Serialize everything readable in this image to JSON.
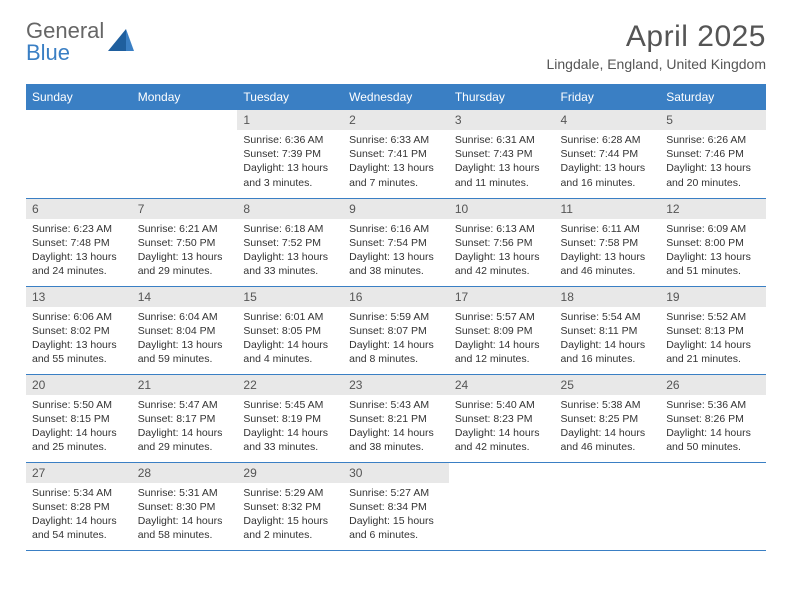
{
  "logo": {
    "line1": "General",
    "line2": "Blue"
  },
  "title": "April 2025",
  "location": "Lingdale, England, United Kingdom",
  "colors": {
    "header_bg": "#3a7fc4",
    "header_text": "#ffffff",
    "daynum_bg": "#e8e8e8",
    "daynum_text": "#555555",
    "body_text": "#333333",
    "rule": "#3a7fc4",
    "logo_gray": "#666666",
    "logo_blue": "#3a7fc4"
  },
  "weekdays": [
    "Sunday",
    "Monday",
    "Tuesday",
    "Wednesday",
    "Thursday",
    "Friday",
    "Saturday"
  ],
  "weeks": [
    [
      null,
      null,
      {
        "n": "1",
        "sr": "6:36 AM",
        "ss": "7:39 PM",
        "dl": "13 hours and 3 minutes."
      },
      {
        "n": "2",
        "sr": "6:33 AM",
        "ss": "7:41 PM",
        "dl": "13 hours and 7 minutes."
      },
      {
        "n": "3",
        "sr": "6:31 AM",
        "ss": "7:43 PM",
        "dl": "13 hours and 11 minutes."
      },
      {
        "n": "4",
        "sr": "6:28 AM",
        "ss": "7:44 PM",
        "dl": "13 hours and 16 minutes."
      },
      {
        "n": "5",
        "sr": "6:26 AM",
        "ss": "7:46 PM",
        "dl": "13 hours and 20 minutes."
      }
    ],
    [
      {
        "n": "6",
        "sr": "6:23 AM",
        "ss": "7:48 PM",
        "dl": "13 hours and 24 minutes."
      },
      {
        "n": "7",
        "sr": "6:21 AM",
        "ss": "7:50 PM",
        "dl": "13 hours and 29 minutes."
      },
      {
        "n": "8",
        "sr": "6:18 AM",
        "ss": "7:52 PM",
        "dl": "13 hours and 33 minutes."
      },
      {
        "n": "9",
        "sr": "6:16 AM",
        "ss": "7:54 PM",
        "dl": "13 hours and 38 minutes."
      },
      {
        "n": "10",
        "sr": "6:13 AM",
        "ss": "7:56 PM",
        "dl": "13 hours and 42 minutes."
      },
      {
        "n": "11",
        "sr": "6:11 AM",
        "ss": "7:58 PM",
        "dl": "13 hours and 46 minutes."
      },
      {
        "n": "12",
        "sr": "6:09 AM",
        "ss": "8:00 PM",
        "dl": "13 hours and 51 minutes."
      }
    ],
    [
      {
        "n": "13",
        "sr": "6:06 AM",
        "ss": "8:02 PM",
        "dl": "13 hours and 55 minutes."
      },
      {
        "n": "14",
        "sr": "6:04 AM",
        "ss": "8:04 PM",
        "dl": "13 hours and 59 minutes."
      },
      {
        "n": "15",
        "sr": "6:01 AM",
        "ss": "8:05 PM",
        "dl": "14 hours and 4 minutes."
      },
      {
        "n": "16",
        "sr": "5:59 AM",
        "ss": "8:07 PM",
        "dl": "14 hours and 8 minutes."
      },
      {
        "n": "17",
        "sr": "5:57 AM",
        "ss": "8:09 PM",
        "dl": "14 hours and 12 minutes."
      },
      {
        "n": "18",
        "sr": "5:54 AM",
        "ss": "8:11 PM",
        "dl": "14 hours and 16 minutes."
      },
      {
        "n": "19",
        "sr": "5:52 AM",
        "ss": "8:13 PM",
        "dl": "14 hours and 21 minutes."
      }
    ],
    [
      {
        "n": "20",
        "sr": "5:50 AM",
        "ss": "8:15 PM",
        "dl": "14 hours and 25 minutes."
      },
      {
        "n": "21",
        "sr": "5:47 AM",
        "ss": "8:17 PM",
        "dl": "14 hours and 29 minutes."
      },
      {
        "n": "22",
        "sr": "5:45 AM",
        "ss": "8:19 PM",
        "dl": "14 hours and 33 minutes."
      },
      {
        "n": "23",
        "sr": "5:43 AM",
        "ss": "8:21 PM",
        "dl": "14 hours and 38 minutes."
      },
      {
        "n": "24",
        "sr": "5:40 AM",
        "ss": "8:23 PM",
        "dl": "14 hours and 42 minutes."
      },
      {
        "n": "25",
        "sr": "5:38 AM",
        "ss": "8:25 PM",
        "dl": "14 hours and 46 minutes."
      },
      {
        "n": "26",
        "sr": "5:36 AM",
        "ss": "8:26 PM",
        "dl": "14 hours and 50 minutes."
      }
    ],
    [
      {
        "n": "27",
        "sr": "5:34 AM",
        "ss": "8:28 PM",
        "dl": "14 hours and 54 minutes."
      },
      {
        "n": "28",
        "sr": "5:31 AM",
        "ss": "8:30 PM",
        "dl": "14 hours and 58 minutes."
      },
      {
        "n": "29",
        "sr": "5:29 AM",
        "ss": "8:32 PM",
        "dl": "15 hours and 2 minutes."
      },
      {
        "n": "30",
        "sr": "5:27 AM",
        "ss": "8:34 PM",
        "dl": "15 hours and 6 minutes."
      },
      null,
      null,
      null
    ]
  ],
  "labels": {
    "sunrise": "Sunrise:",
    "sunset": "Sunset:",
    "daylight": "Daylight:"
  }
}
